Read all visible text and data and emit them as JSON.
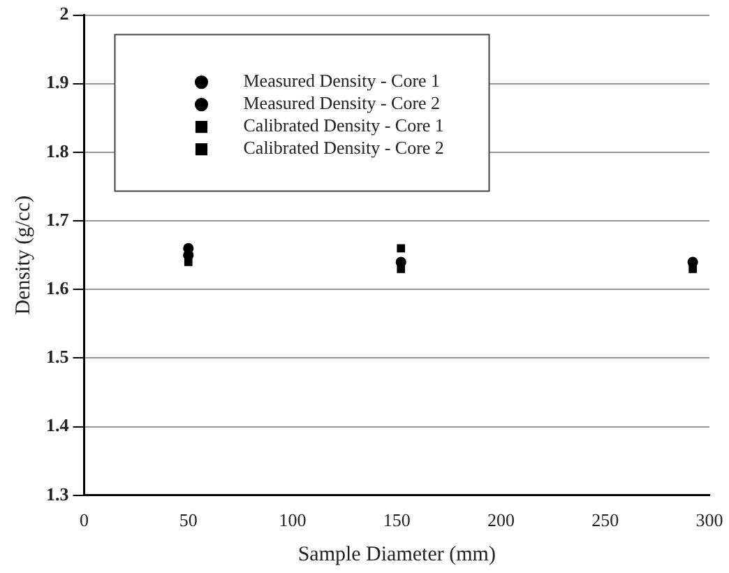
{
  "chart_data": {
    "type": "scatter",
    "xlabel": "Sample Diameter (mm)",
    "ylabel": "Density (g/cc)",
    "x": [
      50,
      152,
      292
    ],
    "series": [
      {
        "name": "Measured Density - Core 1",
        "color": "#000000",
        "marker": "circle",
        "values": [
          1.66,
          null,
          null
        ]
      },
      {
        "name": "Measured Density - Core 2",
        "color": "#000000",
        "marker": "circle",
        "values": [
          1.65,
          1.64,
          1.64
        ]
      },
      {
        "name": "Calibrated Density - Core 1",
        "color": "#000000",
        "marker": "square",
        "values": [
          1.64,
          1.63,
          1.63
        ]
      },
      {
        "name": "Calibrated Density - Core 2",
        "color": "#000000",
        "marker": "square",
        "values": [
          null,
          1.66,
          null
        ]
      }
    ],
    "xlim": [
      0,
      300
    ],
    "xticks": [
      0,
      50,
      100,
      150,
      200,
      250,
      300
    ],
    "ylim": [
      1.3,
      2
    ],
    "yticks": [
      1.3,
      1.4,
      1.5,
      1.6,
      1.7,
      1.8,
      1.9,
      2
    ],
    "grid": "y",
    "legend": "top left"
  }
}
